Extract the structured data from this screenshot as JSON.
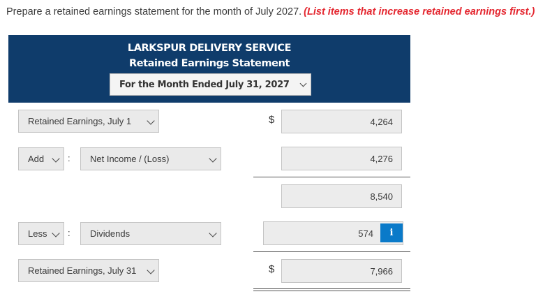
{
  "instruction": {
    "text": "Prepare a retained earnings statement for the month of July 2027.",
    "emphasis": "(List items that increase retained earnings first.)"
  },
  "header": {
    "company": "LARKSPUR DELIVERY SERVICE",
    "statement": "Retained Earnings Statement",
    "period": "For the Month Ended July 31, 2027"
  },
  "rows": {
    "beginning": {
      "label": "Retained Earnings, July 1",
      "currency": "$",
      "value": "4,264"
    },
    "add": {
      "operator": "Add",
      "colon": ":",
      "label": "Net Income / (Loss)",
      "value": "4,276"
    },
    "subtotal": {
      "value": "8,540"
    },
    "less": {
      "operator": "Less",
      "colon": ":",
      "label": "Dividends",
      "value": "574",
      "info": "i"
    },
    "ending": {
      "label": "Retained Earnings, July 31",
      "currency": "$",
      "value": "7,966"
    }
  },
  "colors": {
    "header_bg": "#0f3c6b",
    "emphasis": "#e4262f",
    "info_button": "#0a7ac9"
  }
}
